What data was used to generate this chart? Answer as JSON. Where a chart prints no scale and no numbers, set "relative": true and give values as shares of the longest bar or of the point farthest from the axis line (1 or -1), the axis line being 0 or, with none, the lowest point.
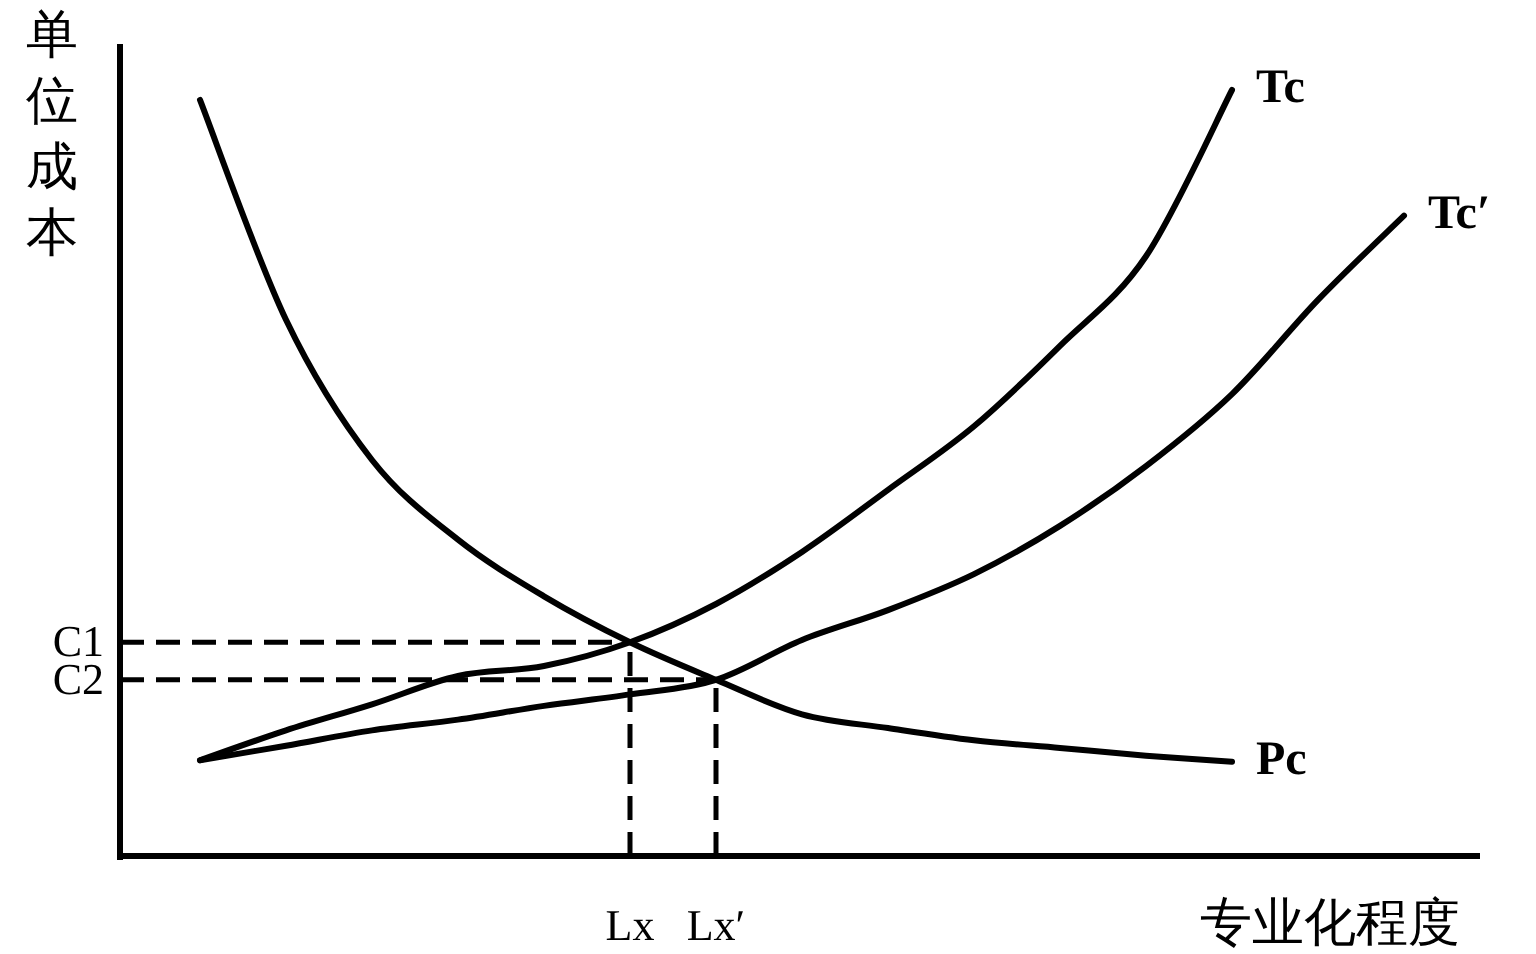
{
  "chart_data": {
    "type": "line",
    "relative": true,
    "xlabel": "专业化程度",
    "ylabel": "单位成本",
    "legend": false,
    "grid": false,
    "categories": [
      null,
      null,
      null,
      null,
      null,
      "Lx",
      "Lx′",
      null,
      null,
      null,
      null,
      null,
      null,
      null,
      null
    ],
    "series": [
      {
        "name": "Tc",
        "color": "#000000",
        "values": [
          0.125,
          0.164,
          0.198,
          0.235,
          0.248,
          0.279,
          0.329,
          0.397,
          0.478,
          0.561,
          0.666,
          0.783,
          1.0,
          null,
          null
        ]
      },
      {
        "name": "Tc′",
        "color": "#000000",
        "values": [
          0.125,
          0.144,
          0.164,
          0.178,
          0.196,
          0.211,
          0.23,
          0.282,
          0.321,
          0.368,
          0.431,
          0.509,
          0.603,
          0.726,
          0.836
        ]
      },
      {
        "name": "Pc",
        "color": "#000000",
        "values": [
          0.987,
          0.7,
          0.517,
          0.413,
          0.339,
          0.279,
          0.23,
          0.185,
          0.167,
          0.151,
          0.141,
          0.131,
          0.123,
          null,
          null
        ]
      }
    ],
    "ref_lines": [
      {
        "axis": "y",
        "value": 0.279,
        "label": "C1",
        "color": "#000000",
        "line_style": "dashed"
      },
      {
        "axis": "y",
        "value": 0.23,
        "label": "C2",
        "color": "#000000",
        "line_style": "dashed"
      },
      {
        "axis": "x",
        "value": "Lx",
        "color": "#000000",
        "line_style": "dashed"
      },
      {
        "axis": "x",
        "value": "Lx′",
        "color": "#000000",
        "line_style": "dashed"
      }
    ]
  }
}
